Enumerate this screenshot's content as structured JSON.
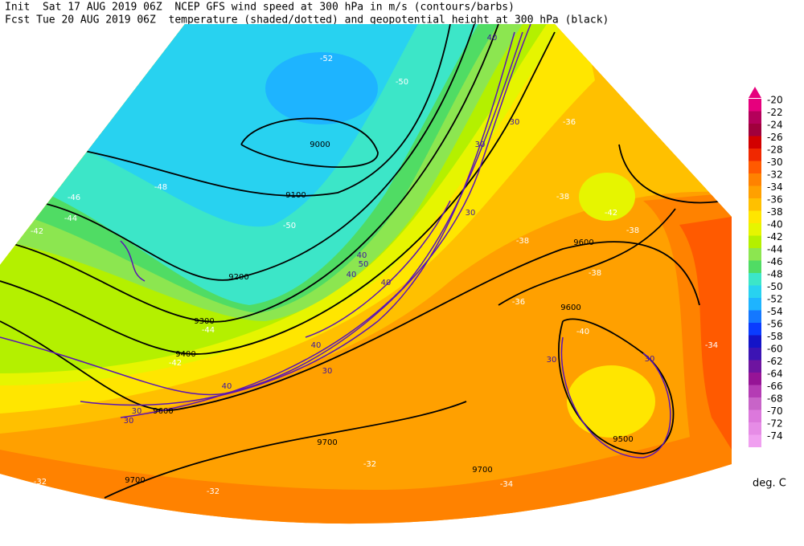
{
  "header": {
    "line1": "Init  Sat 17 AUG 2019 06Z  NCEP GFS wind speed at 300 hPa in m/s (contours/barbs)",
    "line2": "Fcst Tue 20 AUG 2019 06Z  temperature (shaded/dotted) and geopotential height at 300 hPa (black)"
  },
  "colorbar": {
    "unit": "deg. C",
    "levels": [
      {
        "value": -20,
        "color": "#e6007d"
      },
      {
        "value": -22,
        "color": "#b4005a"
      },
      {
        "value": -24,
        "color": "#a0003c"
      },
      {
        "value": -26,
        "color": "#d20000"
      },
      {
        "value": -28,
        "color": "#f02800"
      },
      {
        "value": -30,
        "color": "#ff5a00"
      },
      {
        "value": -32,
        "color": "#ff8200"
      },
      {
        "value": -34,
        "color": "#ffa000"
      },
      {
        "value": -36,
        "color": "#ffc000"
      },
      {
        "value": -38,
        "color": "#ffe600"
      },
      {
        "value": -40,
        "color": "#e6f500"
      },
      {
        "value": -42,
        "color": "#b4f000"
      },
      {
        "value": -44,
        "color": "#8ce650"
      },
      {
        "value": -46,
        "color": "#50dc64"
      },
      {
        "value": -48,
        "color": "#3ce6c8"
      },
      {
        "value": -50,
        "color": "#28d2f0"
      },
      {
        "value": -52,
        "color": "#1eb4ff"
      },
      {
        "value": -54,
        "color": "#1478ff"
      },
      {
        "value": -56,
        "color": "#0a3cff"
      },
      {
        "value": -58,
        "color": "#1414c8"
      },
      {
        "value": -60,
        "color": "#3c14b4"
      },
      {
        "value": -62,
        "color": "#6e14a0"
      },
      {
        "value": -64,
        "color": "#961496"
      },
      {
        "value": -66,
        "color": "#b43cb4"
      },
      {
        "value": -68,
        "color": "#c864c8"
      },
      {
        "value": -70,
        "color": "#dc78dc"
      },
      {
        "value": -72,
        "color": "#e68ce6"
      },
      {
        "value": -74,
        "color": "#f0a0f0"
      }
    ]
  },
  "height_labels": [
    "9000",
    "9100",
    "9200",
    "9300",
    "9400",
    "9500",
    "9600",
    "9600",
    "9600",
    "9700",
    "9700",
    "9700"
  ],
  "temperature_labels": [
    "-52",
    "-50",
    "-48",
    "-46",
    "-44",
    "-42",
    "-50",
    "-44",
    "-42",
    "-38",
    "-38",
    "-36",
    "-38",
    "-40",
    "-34",
    "-32",
    "-32",
    "-32",
    "-34",
    "-36",
    "-42",
    "-38"
  ],
  "wind_labels": [
    "40",
    "30",
    "30",
    "30",
    "40",
    "50",
    "40",
    "40",
    "40",
    "30",
    "40",
    "30",
    "30",
    "30",
    "30"
  ]
}
